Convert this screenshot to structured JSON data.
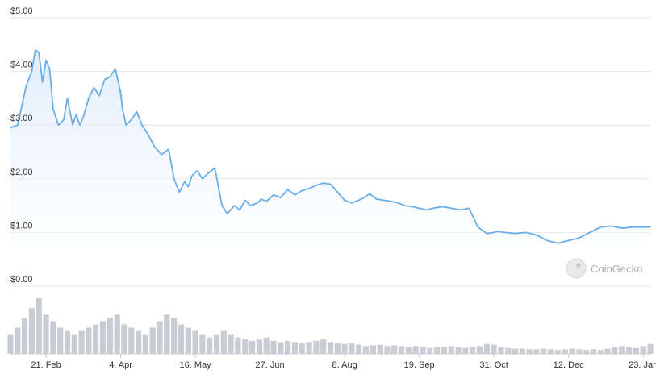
{
  "watermark": {
    "text": "CoinGecko",
    "icon": "gecko-logo-icon"
  },
  "colors": {
    "line": "#6aaee8",
    "area_top": "#dcebfa",
    "grid": "#e6e6e6",
    "volume": "#c9ccd2"
  },
  "chart_data": {
    "type": "line",
    "title": "",
    "xlabel": "",
    "ylabel": "",
    "ylim": [
      0,
      5
    ],
    "y_ticks": [
      "$0.00",
      "$1.00",
      "$2.00",
      "$3.00",
      "$4.00",
      "$5.00"
    ],
    "x_ticks": [
      "21. Feb",
      "4. Apr",
      "16. May",
      "27. Jun",
      "8. Aug",
      "19. Sep",
      "31. Oct",
      "12. Dec",
      "23. Jan"
    ],
    "grid": true,
    "series": [
      {
        "x": [
          "2021-02-01",
          "2021-02-05",
          "2021-02-10",
          "2021-02-13",
          "2021-02-15",
          "2021-02-17",
          "2021-02-19",
          "2021-02-21",
          "2021-02-23",
          "2021-02-25",
          "2021-02-28",
          "2021-03-03",
          "2021-03-05",
          "2021-03-08",
          "2021-03-10",
          "2021-03-12",
          "2021-03-14",
          "2021-03-17",
          "2021-03-20",
          "2021-03-23",
          "2021-03-26",
          "2021-03-29",
          "2021-04-01",
          "2021-04-04",
          "2021-04-05",
          "2021-04-07",
          "2021-04-10",
          "2021-04-13",
          "2021-04-16",
          "2021-04-19",
          "2021-04-23",
          "2021-04-27",
          "2021-05-01",
          "2021-05-04",
          "2021-05-07",
          "2021-05-10",
          "2021-05-12",
          "2021-05-14",
          "2021-05-17",
          "2021-05-20",
          "2021-05-23",
          "2021-05-27",
          "2021-05-31",
          "2021-06-03",
          "2021-06-07",
          "2021-06-10",
          "2021-06-13",
          "2021-06-16",
          "2021-06-20",
          "2021-06-22",
          "2021-06-25",
          "2021-06-29",
          "2021-07-03",
          "2021-07-07",
          "2021-07-11",
          "2021-07-15",
          "2021-07-19",
          "2021-07-23",
          "2021-07-27",
          "2021-07-31",
          "2021-08-04",
          "2021-08-08",
          "2021-08-12",
          "2021-08-16",
          "2021-08-19",
          "2021-08-22",
          "2021-08-26",
          "2021-08-30",
          "2021-09-03",
          "2021-09-07",
          "2021-09-11",
          "2021-09-15",
          "2021-09-19",
          "2021-09-23",
          "2021-09-28",
          "2021-10-02",
          "2021-10-07",
          "2021-10-12",
          "2021-10-17",
          "2021-10-22",
          "2021-10-27",
          "2021-10-31",
          "2021-11-02",
          "2021-11-06",
          "2021-11-12",
          "2021-11-18",
          "2021-11-24",
          "2021-11-30",
          "2021-12-06",
          "2021-12-12",
          "2021-12-18",
          "2021-12-24",
          "2021-12-30",
          "2022-01-05",
          "2022-01-11",
          "2022-01-17",
          "2022-01-21",
          "2022-01-24",
          "2022-01-27"
        ],
        "y": [
          2.95,
          3.0,
          3.75,
          4.0,
          4.4,
          4.35,
          3.8,
          4.2,
          4.05,
          3.3,
          3.0,
          3.1,
          3.5,
          3.0,
          3.2,
          3.0,
          3.15,
          3.5,
          3.7,
          3.55,
          3.85,
          3.9,
          4.05,
          3.6,
          3.3,
          3.0,
          3.1,
          3.25,
          3.0,
          2.85,
          2.6,
          2.45,
          2.55,
          2.0,
          1.75,
          1.95,
          1.85,
          2.05,
          2.15,
          2.0,
          2.1,
          2.2,
          1.5,
          1.35,
          1.5,
          1.42,
          1.6,
          1.5,
          1.55,
          1.62,
          1.58,
          1.7,
          1.65,
          1.8,
          1.7,
          1.78,
          1.82,
          1.88,
          1.92,
          1.9,
          1.75,
          1.6,
          1.55,
          1.6,
          1.65,
          1.72,
          1.62,
          1.6,
          1.58,
          1.55,
          1.5,
          1.48,
          1.45,
          1.42,
          1.46,
          1.48,
          1.45,
          1.42,
          1.45,
          1.1,
          0.98,
          1.0,
          1.02,
          1.0,
          0.98,
          1.0,
          0.95,
          0.85,
          0.8,
          0.85,
          0.9,
          1.0,
          1.1,
          1.12,
          1.08,
          1.1,
          1.1,
          1.1,
          1.1
        ]
      }
    ],
    "volume": {
      "x": [
        "2021-02-01",
        "2021-02-05",
        "2021-02-09",
        "2021-02-13",
        "2021-02-17",
        "2021-02-21",
        "2021-02-25",
        "2021-03-01",
        "2021-03-05",
        "2021-03-09",
        "2021-03-13",
        "2021-03-17",
        "2021-03-21",
        "2021-03-25",
        "2021-03-29",
        "2021-04-02",
        "2021-04-06",
        "2021-04-10",
        "2021-04-14",
        "2021-04-18",
        "2021-04-22",
        "2021-04-26",
        "2021-04-30",
        "2021-05-04",
        "2021-05-08",
        "2021-05-12",
        "2021-05-16",
        "2021-05-20",
        "2021-05-24",
        "2021-05-28",
        "2021-06-01",
        "2021-06-05",
        "2021-06-09",
        "2021-06-13",
        "2021-06-17",
        "2021-06-21",
        "2021-06-25",
        "2021-06-29",
        "2021-07-03",
        "2021-07-07",
        "2021-07-11",
        "2021-07-15",
        "2021-07-19",
        "2021-07-23",
        "2021-07-27",
        "2021-07-31",
        "2021-08-04",
        "2021-08-08",
        "2021-08-12",
        "2021-08-16",
        "2021-08-20",
        "2021-08-24",
        "2021-08-28",
        "2021-09-01",
        "2021-09-05",
        "2021-09-09",
        "2021-09-13",
        "2021-09-17",
        "2021-09-21",
        "2021-09-25",
        "2021-09-29",
        "2021-10-03",
        "2021-10-07",
        "2021-10-11",
        "2021-10-15",
        "2021-10-19",
        "2021-10-23",
        "2021-10-27",
        "2021-10-31",
        "2021-11-04",
        "2021-11-08",
        "2021-11-12",
        "2021-11-16",
        "2021-11-20",
        "2021-11-24",
        "2021-11-28",
        "2021-12-02",
        "2021-12-06",
        "2021-12-10",
        "2021-12-14",
        "2021-12-18",
        "2021-12-22",
        "2021-12-26",
        "2021-12-30",
        "2022-01-03",
        "2022-01-07",
        "2022-01-11",
        "2022-01-15",
        "2022-01-19",
        "2022-01-23",
        "2022-01-27"
      ],
      "relative": [
        0.3,
        0.4,
        0.55,
        0.7,
        0.85,
        0.6,
        0.5,
        0.4,
        0.35,
        0.3,
        0.35,
        0.4,
        0.45,
        0.5,
        0.55,
        0.6,
        0.45,
        0.4,
        0.35,
        0.3,
        0.4,
        0.5,
        0.6,
        0.55,
        0.45,
        0.4,
        0.35,
        0.3,
        0.25,
        0.3,
        0.35,
        0.3,
        0.25,
        0.22,
        0.2,
        0.22,
        0.25,
        0.2,
        0.18,
        0.2,
        0.18,
        0.16,
        0.18,
        0.2,
        0.22,
        0.18,
        0.16,
        0.15,
        0.16,
        0.14,
        0.12,
        0.13,
        0.14,
        0.12,
        0.13,
        0.12,
        0.1,
        0.12,
        0.1,
        0.09,
        0.1,
        0.11,
        0.12,
        0.1,
        0.09,
        0.1,
        0.12,
        0.15,
        0.14,
        0.1,
        0.09,
        0.08,
        0.08,
        0.07,
        0.07,
        0.08,
        0.07,
        0.06,
        0.07,
        0.08,
        0.07,
        0.06,
        0.07,
        0.06,
        0.08,
        0.1,
        0.12,
        0.1,
        0.09,
        0.12,
        0.15
      ]
    }
  }
}
